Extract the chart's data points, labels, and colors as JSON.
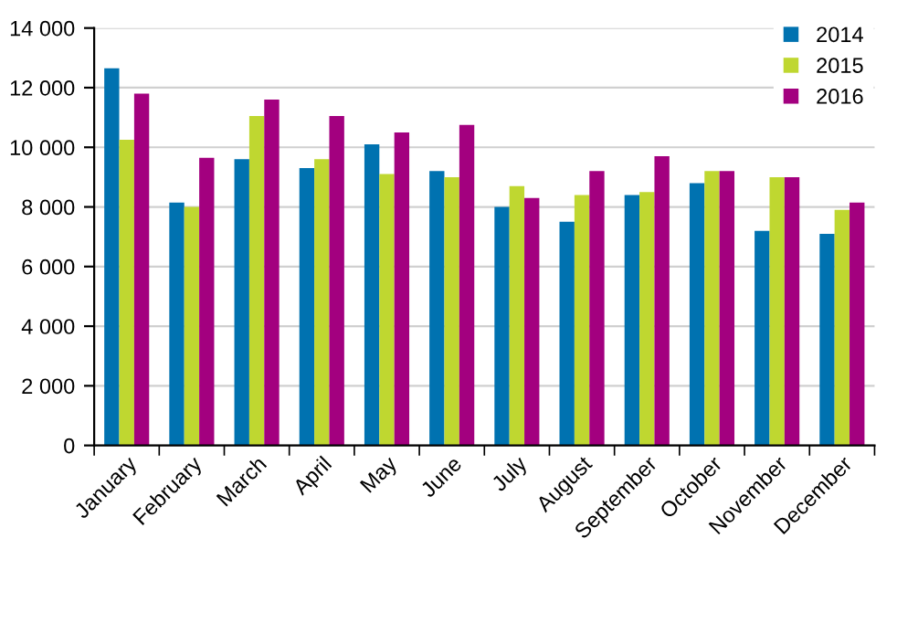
{
  "chart_data": {
    "type": "bar",
    "categories": [
      "January",
      "February",
      "March",
      "April",
      "May",
      "June",
      "July",
      "August",
      "September",
      "October",
      "November",
      "December"
    ],
    "series": [
      {
        "name": "2014",
        "color": "#0072b0",
        "values": [
          12650,
          8150,
          9600,
          9300,
          10100,
          9200,
          8000,
          7500,
          8400,
          8800,
          7200,
          7100
        ]
      },
      {
        "name": "2015",
        "color": "#bfd730",
        "values": [
          10250,
          8000,
          11050,
          9600,
          9100,
          9000,
          8700,
          8400,
          8500,
          9200,
          9000,
          7900
        ]
      },
      {
        "name": "2016",
        "color": "#a3007f",
        "values": [
          11800,
          9650,
          11600,
          11050,
          10500,
          10750,
          8300,
          9200,
          9700,
          9200,
          9000,
          8150
        ]
      }
    ],
    "ylim": [
      0,
      14000
    ],
    "yticks": [
      0,
      {
        "value": 2000,
        "label": "2 000"
      },
      {
        "value": 4000,
        "label": "4 000"
      },
      {
        "value": 6000,
        "label": "6 000"
      },
      {
        "value": 8000,
        "label": "8 000"
      },
      {
        "value": 10000,
        "label": "10 000"
      },
      {
        "value": 12000,
        "label": "12 000"
      },
      {
        "value": 14000,
        "label": "14 000"
      }
    ],
    "grid": "y",
    "legend": "top right"
  }
}
